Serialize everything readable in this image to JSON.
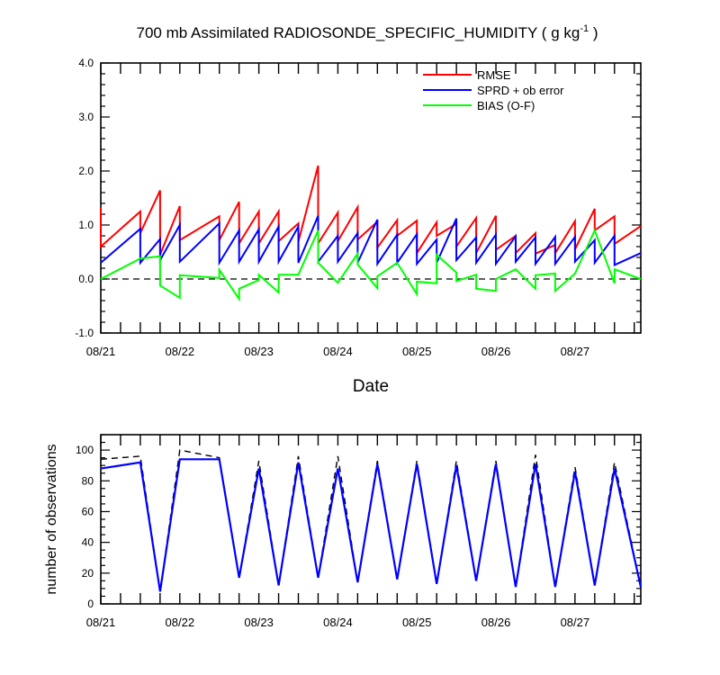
{
  "chart_data": [
    {
      "type": "line",
      "title_main": "700 mb Assimilated RADIOSONDE_SPECIFIC_HUMIDITY ( g kg",
      "title_sup": "-1",
      "title_end": " )",
      "xlabel": "Date",
      "ylabel": "",
      "xlim": [
        0,
        6.833
      ],
      "ylim": [
        -1.0,
        4.0
      ],
      "x_ticks": [
        0,
        1,
        2,
        3,
        4,
        5,
        6
      ],
      "x_tick_labels": [
        "08/21",
        "08/22",
        "08/23",
        "08/24",
        "08/25",
        "08/26",
        "08/27"
      ],
      "y_ticks": [
        -1.0,
        0.0,
        1.0,
        2.0,
        3.0,
        4.0
      ],
      "y_tick_labels": [
        "-1.0",
        "0.0",
        "1.0",
        "2.0",
        "3.0",
        "4.0"
      ],
      "zero_line": "dashed",
      "legend_placement": "top-right",
      "series": [
        {
          "name": "RMSE",
          "color": "#ff0000",
          "points": [
            [
              0.0,
              1.33
            ],
            [
              0.0,
              0.6
            ],
            [
              0.5,
              1.25
            ],
            [
              0.5,
              0.85
            ],
            [
              0.75,
              1.64
            ],
            [
              0.75,
              0.45
            ],
            [
              1.0,
              1.35
            ],
            [
              1.0,
              0.72
            ],
            [
              1.5,
              1.16
            ],
            [
              1.5,
              0.72
            ],
            [
              1.75,
              1.43
            ],
            [
              1.75,
              0.66
            ],
            [
              2.0,
              1.25
            ],
            [
              2.0,
              0.66
            ],
            [
              2.25,
              1.25
            ],
            [
              2.25,
              0.7
            ],
            [
              2.5,
              1.03
            ],
            [
              2.5,
              0.69
            ],
            [
              2.75,
              2.1
            ],
            [
              2.75,
              0.66
            ],
            [
              3.0,
              1.23
            ],
            [
              3.0,
              0.7
            ],
            [
              3.25,
              1.33
            ],
            [
              3.25,
              0.73
            ],
            [
              3.5,
              1.06
            ],
            [
              3.5,
              0.58
            ],
            [
              3.75,
              1.09
            ],
            [
              3.75,
              0.8
            ],
            [
              4.0,
              1.08
            ],
            [
              4.0,
              0.48
            ],
            [
              4.25,
              1.05
            ],
            [
              4.25,
              0.8
            ],
            [
              4.5,
              1.02
            ],
            [
              4.5,
              0.6
            ],
            [
              4.75,
              1.13
            ],
            [
              4.75,
              0.48
            ],
            [
              5.0,
              1.17
            ],
            [
              5.0,
              0.54
            ],
            [
              5.25,
              0.8
            ],
            [
              5.25,
              0.48
            ],
            [
              5.5,
              0.85
            ],
            [
              5.5,
              0.47
            ],
            [
              5.75,
              0.63
            ],
            [
              5.75,
              0.48
            ],
            [
              6.0,
              1.07
            ],
            [
              6.0,
              0.55
            ],
            [
              6.25,
              1.3
            ],
            [
              6.25,
              0.9
            ],
            [
              6.5,
              1.16
            ],
            [
              6.5,
              0.65
            ],
            [
              6.833,
              0.98
            ]
          ]
        },
        {
          "name": "SPRD + ob error",
          "color": "#0000ff",
          "points": [
            [
              0.0,
              0.3
            ],
            [
              0.5,
              0.93
            ],
            [
              0.5,
              0.3
            ],
            [
              0.75,
              0.74
            ],
            [
              0.75,
              0.35
            ],
            [
              1.0,
              1.0
            ],
            [
              1.0,
              0.32
            ],
            [
              1.5,
              1.03
            ],
            [
              1.5,
              0.3
            ],
            [
              1.75,
              0.9
            ],
            [
              1.75,
              0.32
            ],
            [
              2.0,
              0.92
            ],
            [
              2.0,
              0.32
            ],
            [
              2.25,
              0.97
            ],
            [
              2.25,
              0.32
            ],
            [
              2.5,
              0.97
            ],
            [
              2.5,
              0.3
            ],
            [
              2.75,
              1.17
            ],
            [
              2.75,
              0.32
            ],
            [
              3.0,
              0.8
            ],
            [
              3.0,
              0.32
            ],
            [
              3.25,
              0.85
            ],
            [
              3.25,
              0.3
            ],
            [
              3.5,
              1.1
            ],
            [
              3.5,
              0.28
            ],
            [
              3.75,
              0.82
            ],
            [
              3.75,
              0.3
            ],
            [
              4.0,
              0.83
            ],
            [
              4.0,
              0.28
            ],
            [
              4.25,
              0.73
            ],
            [
              4.25,
              0.3
            ],
            [
              4.5,
              1.12
            ],
            [
              4.5,
              0.35
            ],
            [
              4.75,
              0.77
            ],
            [
              4.75,
              0.3
            ],
            [
              5.0,
              0.82
            ],
            [
              5.0,
              0.28
            ],
            [
              5.25,
              0.79
            ],
            [
              5.25,
              0.32
            ],
            [
              5.5,
              0.77
            ],
            [
              5.5,
              0.28
            ],
            [
              5.75,
              0.78
            ],
            [
              5.75,
              0.28
            ],
            [
              6.0,
              0.78
            ],
            [
              6.0,
              0.32
            ],
            [
              6.25,
              0.72
            ],
            [
              6.25,
              0.3
            ],
            [
              6.5,
              0.8
            ],
            [
              6.5,
              0.26
            ],
            [
              6.833,
              0.48
            ]
          ]
        },
        {
          "name": "BIAS (O-F)",
          "color": "#00ff00",
          "points": [
            [
              0.0,
              0.0
            ],
            [
              0.5,
              0.38
            ],
            [
              0.75,
              0.42
            ],
            [
              0.75,
              -0.12
            ],
            [
              1.0,
              -0.35
            ],
            [
              1.0,
              0.07
            ],
            [
              1.5,
              0.02
            ],
            [
              1.5,
              0.17
            ],
            [
              1.75,
              -0.37
            ],
            [
              1.75,
              -0.18
            ],
            [
              2.0,
              -0.02
            ],
            [
              2.0,
              0.08
            ],
            [
              2.25,
              -0.25
            ],
            [
              2.25,
              0.08
            ],
            [
              2.5,
              0.08
            ],
            [
              2.75,
              0.9
            ],
            [
              2.75,
              0.3
            ],
            [
              3.0,
              -0.07
            ],
            [
              3.25,
              0.47
            ],
            [
              3.25,
              0.27
            ],
            [
              3.5,
              -0.17
            ],
            [
              3.5,
              0.05
            ],
            [
              3.75,
              0.3
            ],
            [
              4.0,
              -0.28
            ],
            [
              4.0,
              -0.05
            ],
            [
              4.25,
              -0.08
            ],
            [
              4.25,
              0.45
            ],
            [
              4.5,
              0.12
            ],
            [
              4.5,
              -0.04
            ],
            [
              4.75,
              0.08
            ],
            [
              4.75,
              -0.18
            ],
            [
              5.0,
              -0.22
            ],
            [
              5.0,
              0.0
            ],
            [
              5.25,
              0.18
            ],
            [
              5.5,
              -0.18
            ],
            [
              5.5,
              0.07
            ],
            [
              5.75,
              0.1
            ],
            [
              5.75,
              -0.22
            ],
            [
              6.0,
              0.1
            ],
            [
              6.25,
              0.9
            ],
            [
              6.5,
              -0.08
            ],
            [
              6.5,
              0.18
            ],
            [
              6.833,
              0.0
            ]
          ]
        }
      ]
    },
    {
      "type": "line",
      "title": "",
      "xlabel": "",
      "ylabel": "number of observations",
      "xlim": [
        0,
        6.833
      ],
      "ylim": [
        0,
        110
      ],
      "x_ticks": [
        0,
        1,
        2,
        3,
        4,
        5,
        6
      ],
      "x_tick_labels": [
        "08/21",
        "08/22",
        "08/23",
        "08/24",
        "08/25",
        "08/26",
        "08/27"
      ],
      "y_ticks": [
        0,
        20,
        40,
        60,
        80,
        100
      ],
      "y_tick_labels": [
        "0",
        "20",
        "40",
        "60",
        "80",
        "100"
      ],
      "series": [
        {
          "style": "solid",
          "color": "#0000ff",
          "points": [
            [
              0.0,
              88
            ],
            [
              0.5,
              92
            ],
            [
              0.75,
              8
            ],
            [
              1.0,
              94
            ],
            [
              1.5,
              94
            ],
            [
              1.75,
              17
            ],
            [
              2.0,
              88
            ],
            [
              2.25,
              12
            ],
            [
              2.5,
              92
            ],
            [
              2.75,
              17
            ],
            [
              3.0,
              88
            ],
            [
              3.25,
              14
            ],
            [
              3.5,
              91
            ],
            [
              3.75,
              16
            ],
            [
              4.0,
              91
            ],
            [
              4.25,
              13
            ],
            [
              4.5,
              90
            ],
            [
              4.75,
              15
            ],
            [
              5.0,
              91
            ],
            [
              5.25,
              11
            ],
            [
              5.5,
              91
            ],
            [
              5.75,
              11
            ],
            [
              6.0,
              86
            ],
            [
              6.25,
              12
            ],
            [
              6.5,
              88
            ],
            [
              6.833,
              11
            ]
          ]
        },
        {
          "style": "dashed",
          "color": "#000000",
          "points": [
            [
              0.0,
              94
            ],
            [
              0.5,
              96
            ],
            [
              0.75,
              8
            ],
            [
              1.0,
              100
            ],
            [
              1.5,
              95
            ],
            [
              1.75,
              17
            ],
            [
              2.0,
              93
            ],
            [
              2.25,
              12
            ],
            [
              2.5,
              96
            ],
            [
              2.75,
              17
            ],
            [
              3.0,
              96
            ],
            [
              3.25,
              14
            ],
            [
              3.5,
              93
            ],
            [
              3.75,
              16
            ],
            [
              4.0,
              93
            ],
            [
              4.25,
              13
            ],
            [
              4.5,
              93
            ],
            [
              4.75,
              15
            ],
            [
              5.0,
              93
            ],
            [
              5.25,
              11
            ],
            [
              5.5,
              97
            ],
            [
              5.75,
              11
            ],
            [
              6.0,
              89
            ],
            [
              6.25,
              12
            ],
            [
              6.5,
              92
            ],
            [
              6.833,
              11
            ]
          ]
        }
      ]
    }
  ]
}
